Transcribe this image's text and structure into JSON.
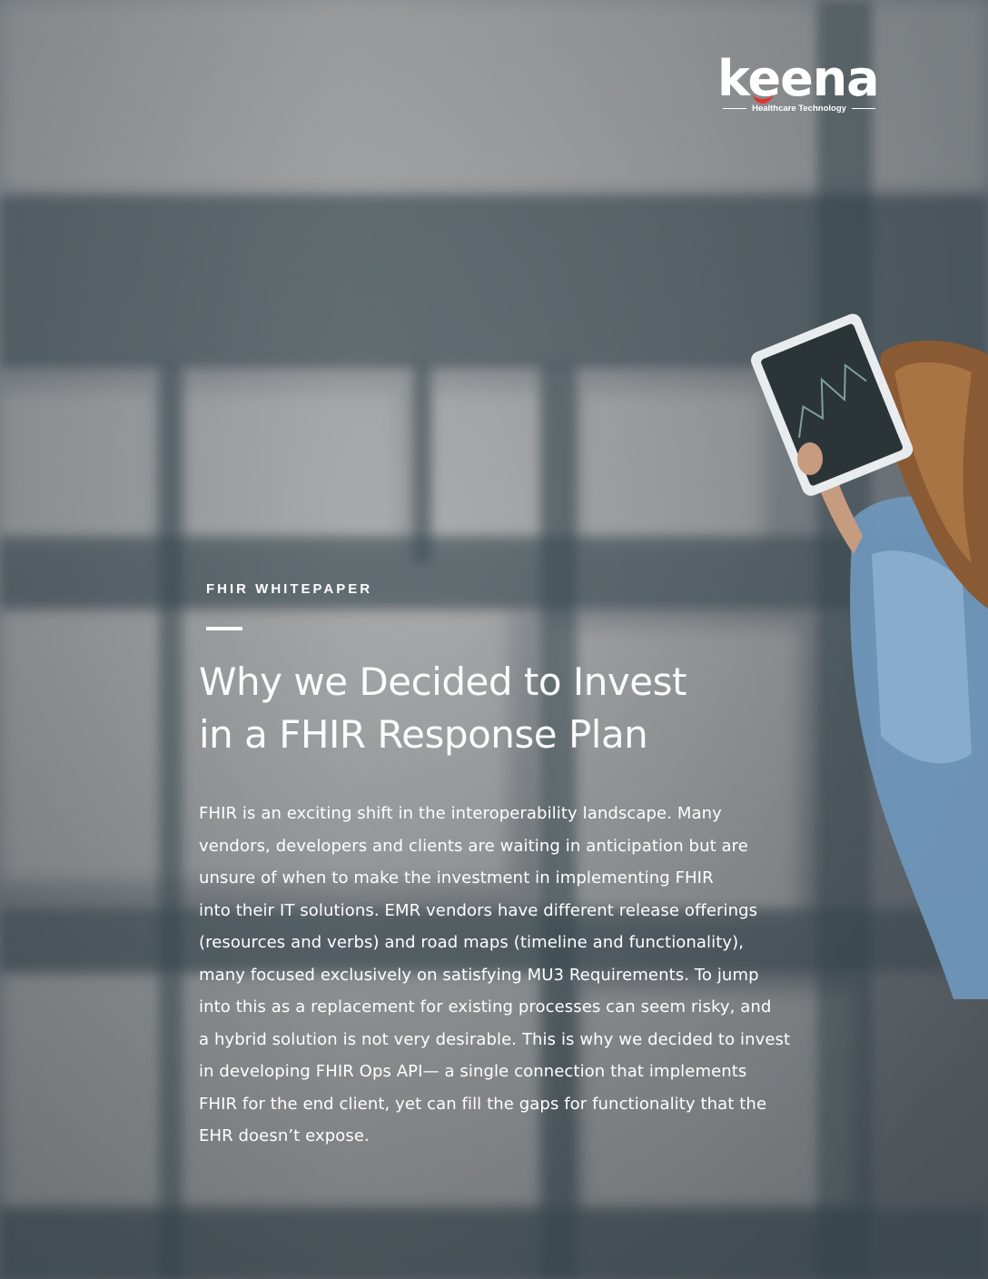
{
  "logo": {
    "wordmark": "keena",
    "tagline": "Healthcare Technology",
    "accent_color": "#e8302a"
  },
  "kicker": "FHIR WHITEPAPER",
  "title_lines": [
    "Why we Decided to Invest",
    "in a FHIR Response Plan"
  ],
  "body_lines": [
    "FHIR is an exciting shift in the interoperability landscape. Many",
    "vendors, developers and clients are waiting in anticipation but are",
    "unsure of when to make the investment in implementing FHIR",
    "into their IT solutions. EMR vendors have different release offerings",
    "(resources and verbs) and road maps (timeline and functionality),",
    "many focused exclusively on satisfying MU3 Requirements. To jump",
    "into this as a replacement for existing processes can seem risky, and",
    "a hybrid solution is not very desirable. This is why we decided to invest",
    "in developing FHIR Ops API— a single connection that implements",
    "FHIR for the end client, yet can fill the gaps for functionality that the",
    "EHR doesn’t expose."
  ],
  "colors": {
    "text": "#ffffff",
    "background": "#8f9397"
  }
}
